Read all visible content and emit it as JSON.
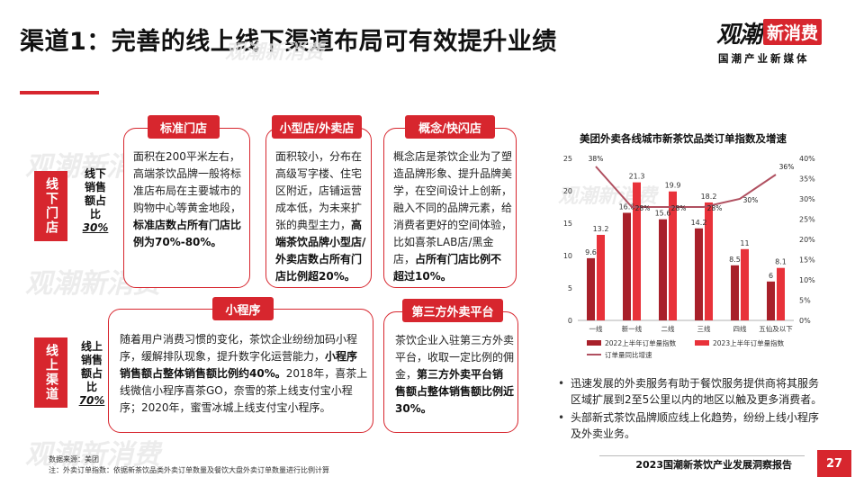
{
  "header": {
    "title": "渠道1：完善的线上线下渠道布局可有效提升业绩",
    "logo_main": "观潮",
    "logo_box": "新消费",
    "logo_sub": "国潮产业新媒体",
    "logo_url": "guancha.gxdesign.cn"
  },
  "watermark_text": "观潮新消费",
  "offline": {
    "tab": "线下门店",
    "label_lines": [
      "线下",
      "销售",
      "额占",
      "比"
    ],
    "pct": "30%",
    "cards": [
      {
        "pill": "标准门店",
        "text_plain": "面积在200平米左右，高端茶饮品牌一般将标准店布局在主要城市的购物中心等黄金地段，",
        "text_bold": "标准店数占所有门店比例为70%-80%。",
        "text_tail": ""
      },
      {
        "pill": "小型店/外卖店",
        "text_plain": "面积较小，分布在高级写字楼、住宅区附近，店铺运营成本低，为未来扩张的典型主力，",
        "text_bold": "高端茶饮品牌小型店/外卖店数占所有门店比例超20%。",
        "text_tail": ""
      },
      {
        "pill": "概念/快闪店",
        "text_plain": "概念店是茶饮企业为了塑造品牌形象、提升品牌美学，在空间设计上创新，融入不同的品牌元素，给消费者更好的空间体验，比如喜茶LAB店/黑金店，",
        "text_bold": "占所有门店比例不超过10%。",
        "text_tail": ""
      }
    ]
  },
  "online": {
    "tab": "线上渠道",
    "label_lines": [
      "线上",
      "销售",
      "额占",
      "比"
    ],
    "pct": "70%",
    "cards": [
      {
        "pill": "小程序",
        "text_plain": "随着用户消费习惯的变化，茶饮企业纷纷加码小程序，缓解排队现象，提升数字化运营能力，",
        "text_bold": "小程序销售额占整体销售额比例约40%。",
        "text_tail": "2018年，喜茶上线微信小程序喜茶GO，奈雪的茶上线支付宝小程序；2020年，蜜雪冰城上线支付宝小程序。"
      },
      {
        "pill": "第三方外卖平台",
        "text_plain": "茶饮企业入驻第三方外卖平台，收取一定比例的佣金，",
        "text_bold": "第三方外卖平台销售额占整体销售额比例近30%。",
        "text_tail": ""
      }
    ]
  },
  "notes": {
    "source": "数据来源：美团",
    "footnote": "注：外卖订单指数：依据新茶饮品类外卖订单数量及餐饮大盘外卖订单数量进行比例计算"
  },
  "chart_data": {
    "type": "bar",
    "title": "美团外卖各线城市新茶饮品类订单指数及增速",
    "categories": [
      "一线",
      "新一线",
      "二线",
      "三线",
      "四线",
      "五仙及以下"
    ],
    "series": [
      {
        "name": "2022上半年订单量指数",
        "type": "bar",
        "values": [
          9.6,
          16.6,
          15.6,
          14.2,
          8.5,
          6
        ],
        "color": "#a8202a"
      },
      {
        "name": "2023上半年订单量指数",
        "type": "bar",
        "values": [
          13.2,
          21.3,
          19.9,
          18.2,
          11,
          8.1
        ],
        "color": "#e8323a"
      },
      {
        "name": "订单量同比增速",
        "type": "line",
        "values": [
          38,
          28,
          28,
          28,
          30,
          36
        ],
        "color": "#b05060",
        "axis": "right",
        "unit": "%"
      }
    ],
    "ylim": [
      0,
      25
    ],
    "y_ticks": [
      0,
      5,
      10,
      15,
      20,
      25
    ],
    "y2lim": [
      0,
      40
    ],
    "y2_ticks": [
      "0%",
      "5%",
      "10%",
      "15%",
      "20%",
      "25%",
      "30%",
      "35%",
      "40%"
    ],
    "line_labels": [
      "38%",
      "28%",
      "28%",
      "28%",
      "30%",
      "36%"
    ],
    "legend_position": "bottom",
    "grid": false
  },
  "bullets": [
    "迅速发展的外卖服务有助于餐饮服务提供商将其服务区域扩展到2至5公里以内的地区以触及更多消费者。",
    "头部新式茶饮品牌顺应线上化趋势，纷纷上线小程序及外卖业务。"
  ],
  "footer": {
    "report": "2023国潮新茶饮产业发展洞察报告",
    "page": "27"
  },
  "colors": {
    "accent": "#d7262e",
    "bar_2022": "#a8202a",
    "bar_2023": "#e8323a",
    "line": "#b05060"
  }
}
